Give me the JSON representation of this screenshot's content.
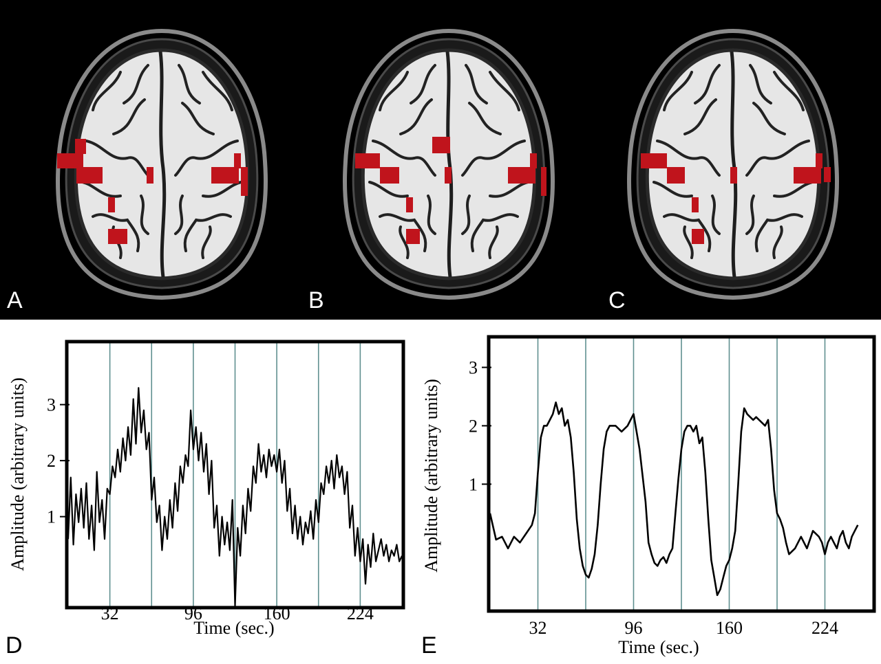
{
  "panels": {
    "A": "A",
    "B": "B",
    "C": "C",
    "D": "D",
    "E": "E"
  },
  "colors": {
    "activation": "#c0141c",
    "background_top": "#000000",
    "block_line": "#5f8f8f",
    "trace": "#000000"
  },
  "brain_panels": [
    {
      "label": "A",
      "description_key": "axial-brain-slice-with-activation-map"
    },
    {
      "label": "B",
      "description_key": "axial-brain-slice-with-activation-map"
    },
    {
      "label": "C",
      "description_key": "axial-brain-slice-with-activation-map"
    }
  ],
  "chart_data": [
    {
      "panel": "D",
      "type": "line",
      "xlabel": "Time (sec.)",
      "ylabel": "Amplitude (arbitrary units)",
      "x_ticks": [
        32,
        96,
        160,
        224
      ],
      "y_ticks": [
        1,
        2,
        3
      ],
      "xlim": [
        0,
        256
      ],
      "ylim": [
        -0.6,
        4.1
      ],
      "block_boundaries": [
        32,
        64,
        96,
        128,
        160,
        192,
        224
      ],
      "grid": false,
      "series": [
        {
          "x": [
            0,
            2,
            4,
            6,
            8,
            10,
            12,
            14,
            16,
            18,
            20,
            22,
            24,
            26,
            28,
            30,
            32,
            34,
            36,
            38,
            40,
            42,
            44,
            46,
            48,
            50,
            52,
            54,
            56,
            58,
            60,
            62,
            64,
            66,
            68,
            70,
            72,
            74,
            76,
            78,
            80,
            82,
            84,
            86,
            88,
            90,
            92,
            94,
            96,
            98,
            100,
            102,
            104,
            106,
            108,
            110,
            112,
            114,
            116,
            118,
            120,
            122,
            124,
            126,
            128,
            130,
            132,
            134,
            136,
            138,
            140,
            142,
            144,
            146,
            148,
            150,
            152,
            154,
            156,
            158,
            160,
            162,
            164,
            166,
            168,
            170,
            172,
            174,
            176,
            178,
            180,
            182,
            184,
            186,
            188,
            190,
            192,
            194,
            196,
            198,
            200,
            202,
            204,
            206,
            208,
            210,
            212,
            214,
            216,
            218,
            220,
            222,
            224,
            226,
            228,
            230,
            232,
            234,
            236,
            238,
            240,
            242,
            244,
            246,
            248,
            250,
            252,
            254,
            256
          ],
          "y": [
            0.6,
            1.7,
            0.5,
            1.4,
            0.9,
            1.5,
            0.8,
            1.6,
            0.6,
            1.2,
            0.4,
            1.8,
            0.9,
            1.3,
            0.6,
            1.5,
            1.4,
            1.9,
            1.7,
            2.2,
            1.8,
            2.4,
            2.0,
            2.6,
            2.1,
            3.1,
            2.3,
            3.3,
            2.5,
            2.9,
            2.2,
            2.5,
            1.3,
            1.7,
            0.9,
            1.2,
            0.4,
            1.0,
            0.6,
            1.3,
            0.8,
            1.6,
            1.1,
            1.9,
            1.6,
            2.1,
            1.9,
            2.9,
            2.2,
            2.6,
            2.0,
            2.5,
            1.8,
            2.3,
            1.4,
            2.0,
            0.8,
            1.2,
            0.3,
            1.0,
            0.5,
            0.9,
            0.4,
            1.3,
            -0.6,
            0.8,
            0.3,
            1.2,
            0.7,
            1.5,
            1.1,
            1.9,
            1.6,
            2.3,
            1.8,
            2.1,
            1.7,
            2.2,
            1.9,
            2.1,
            1.8,
            2.2,
            1.6,
            2.0,
            1.1,
            1.5,
            0.7,
            1.2,
            0.6,
            1.0,
            0.5,
            0.9,
            0.7,
            1.1,
            0.6,
            1.3,
            0.9,
            1.6,
            1.4,
            1.9,
            1.6,
            2.0,
            1.5,
            2.1,
            1.7,
            1.9,
            1.4,
            1.8,
            0.8,
            1.2,
            0.3,
            0.8,
            0.2,
            0.6,
            -0.2,
            0.5,
            0.1,
            0.7,
            0.2,
            0.4,
            0.6,
            0.3,
            0.5,
            0.2,
            0.4,
            0.3,
            0.5,
            0.2,
            0.3
          ]
        }
      ]
    },
    {
      "panel": "E",
      "type": "line",
      "xlabel": "Time (sec.)",
      "ylabel": "Amplitude (arbitrary units)",
      "x_ticks": [
        32,
        96,
        160,
        224
      ],
      "y_ticks": [
        1,
        2,
        3
      ],
      "xlim": [
        0,
        256
      ],
      "ylim": [
        -1.15,
        3.5
      ],
      "block_boundaries": [
        32,
        64,
        96,
        128,
        160,
        192,
        224
      ],
      "grid": false,
      "series": [
        {
          "x": [
            0,
            4,
            8,
            12,
            16,
            20,
            24,
            28,
            30,
            32,
            34,
            36,
            38,
            40,
            42,
            44,
            46,
            48,
            50,
            52,
            54,
            56,
            58,
            60,
            62,
            64,
            66,
            68,
            70,
            72,
            74,
            76,
            78,
            80,
            84,
            88,
            92,
            96,
            100,
            104,
            106,
            108,
            110,
            112,
            114,
            116,
            118,
            120,
            122,
            124,
            126,
            128,
            130,
            132,
            134,
            136,
            138,
            140,
            142,
            144,
            146,
            148,
            150,
            152,
            154,
            156,
            158,
            160,
            162,
            164,
            166,
            168,
            170,
            172,
            174,
            176,
            178,
            180,
            182,
            184,
            186,
            188,
            190,
            192,
            194,
            196,
            198,
            200,
            204,
            208,
            212,
            216,
            220,
            222,
            224,
            226,
            228,
            230,
            232,
            234,
            236,
            238,
            240,
            242,
            244,
            246
          ],
          "y": [
            0.5,
            0.05,
            0.1,
            -0.1,
            0.1,
            0.0,
            0.15,
            0.3,
            0.5,
            1.2,
            1.8,
            2.0,
            2.0,
            2.1,
            2.2,
            2.4,
            2.2,
            2.3,
            2.0,
            2.1,
            1.8,
            1.2,
            0.4,
            -0.1,
            -0.4,
            -0.55,
            -0.6,
            -0.45,
            -0.2,
            0.3,
            1.0,
            1.6,
            1.9,
            2.0,
            2.0,
            1.9,
            2.0,
            2.2,
            1.6,
            0.7,
            0.0,
            -0.2,
            -0.35,
            -0.4,
            -0.3,
            -0.25,
            -0.35,
            -0.2,
            -0.1,
            0.5,
            1.1,
            1.6,
            1.9,
            2.0,
            2.0,
            1.9,
            2.0,
            1.7,
            1.8,
            1.2,
            0.4,
            -0.3,
            -0.6,
            -0.9,
            -0.8,
            -0.6,
            -0.4,
            -0.3,
            -0.1,
            0.2,
            1.0,
            1.9,
            2.3,
            2.2,
            2.15,
            2.1,
            2.15,
            2.1,
            2.05,
            2.0,
            2.1,
            1.6,
            0.9,
            0.5,
            0.4,
            0.25,
            0.0,
            -0.2,
            -0.1,
            0.1,
            -0.1,
            0.2,
            0.1,
            0.0,
            -0.2,
            0.0,
            0.1,
            0.0,
            -0.1,
            0.1,
            0.2,
            0.0,
            -0.1,
            0.1,
            0.2,
            0.3
          ]
        }
      ]
    }
  ]
}
